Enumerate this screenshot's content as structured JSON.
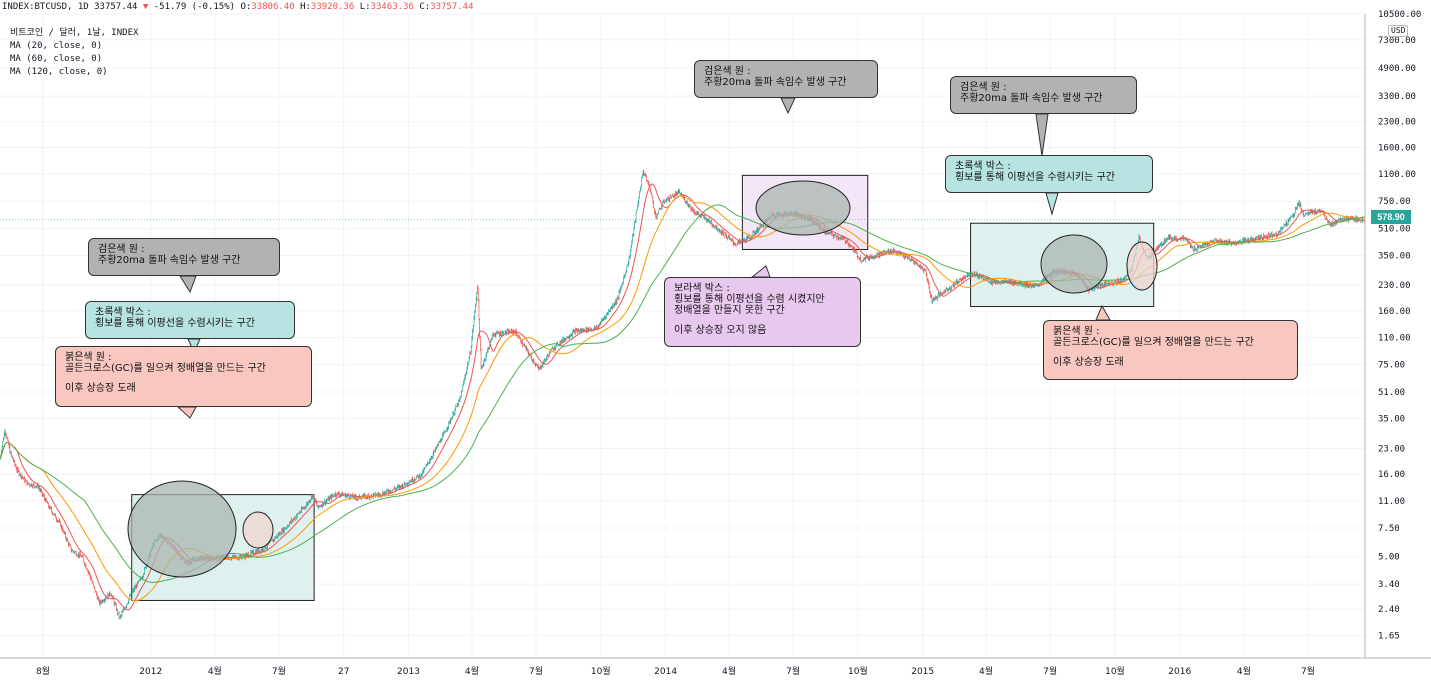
{
  "header": {
    "symbol": "INDEX:BTCUSD, 1D 33757.44",
    "change_arrow": "▼",
    "change": "-51.79 (-0.15%)",
    "o_label": "O:",
    "o": "33806.40",
    "h_label": "H:",
    "h": "33920.36",
    "l_label": "L:",
    "l": "33463.36",
    "c_label": "C:",
    "c": "33757.44"
  },
  "legend": {
    "title": "비트코인 / 달러, 1날, INDEX",
    "ma20": "MA (20, close, 0)",
    "ma60": "MA (60, close, 0)",
    "ma120": "MA (120, close, 0)"
  },
  "colors": {
    "candle_up": "#26a69a",
    "candle_down": "#ef5350",
    "ma20": "#ef5350",
    "ma60": "#ff9800",
    "ma120": "#4caf50",
    "gray_bubble": "#b2b2b2",
    "teal_bubble": "#b7e3e0",
    "red_bubble": "#f7c7c0",
    "purple_bubble": "#e7c9ef",
    "teal_box": "#dff1ef",
    "purple_box": "#f3e6f6",
    "gray_circle": "#a9b4b0",
    "pink_circle": "#efd4cf"
  },
  "annotations": {
    "gray1": {
      "l1": "검은색 원 :",
      "l2": "주황20ma 돌파 속임수 발생 구간"
    },
    "teal1": {
      "l1": "초록색 박스 :",
      "l2": "횡보를 통해 이평선을 수렴시키는 구간"
    },
    "red1": {
      "l1": "붉은색 원 :",
      "l2": "골든크로스(GC)를 일으켜 정배열을 만드는 구간",
      "l3": "이후 상승장 도래"
    },
    "gray2": {
      "l1": "검은색 원 :",
      "l2": "주황20ma 돌파 속임수 발생 구간"
    },
    "purple": {
      "l1": "보라색 박스 :",
      "l2": "횡보를 통해 이평선을 수렴 시켰지만",
      "l3": "정배열을 만들지 못한 구간",
      "l4": "이후 상승장 오지 않음"
    },
    "gray3": {
      "l1": "검은색 원 :",
      "l2": "주황20ma 돌파 속임수 발생 구간"
    },
    "teal2": {
      "l1": "초록색 박스 :",
      "l2": "횡보를 통해 이평선을 수렴시키는 구간"
    },
    "red2": {
      "l1": "붉은색 원 :",
      "l2": "골든크로스(GC)를 일으켜 정배열을 만드는 구간",
      "l3": "이후 상승장 도래"
    }
  },
  "price_tag": "578.90",
  "currency": "USD",
  "chart_data": {
    "type": "candlestick",
    "y_scale": "log",
    "ylim": [
      1.2,
      10500
    ],
    "y_ticks": [
      "10500.00",
      "7300.00",
      "4900.00",
      "3300.00",
      "2300.00",
      "1600.00",
      "1100.00",
      "750.00",
      "510.00",
      "350.00",
      "230.00",
      "160.00",
      "110.00",
      "75.00",
      "51.00",
      "35.00",
      "23.00",
      "16.00",
      "11.00",
      "7.50",
      "5.00",
      "3.40",
      "2.40",
      "1.65"
    ],
    "x_ticks": [
      "8월",
      "2012",
      "4월",
      "7월",
      "27",
      "2013",
      "4월",
      "7월",
      "10월",
      "2014",
      "4월",
      "7월",
      "10월",
      "2015",
      "4월",
      "7월",
      "10월",
      "2016",
      "4월",
      "7월"
    ],
    "x_tick_dates": [
      "2011-08",
      "2012-01",
      "2012-04",
      "2012-07",
      "2012-10",
      "2013-01",
      "2013-04",
      "2013-07",
      "2013-10",
      "2014-01",
      "2014-04",
      "2014-07",
      "2014-10",
      "2015-01",
      "2015-04",
      "2015-07",
      "2015-10",
      "2016-01",
      "2016-04",
      "2016-07"
    ],
    "x_range": [
      "2011-06-01",
      "2016-09-20"
    ],
    "last_price": 578.9,
    "price_path": [
      [
        "2011-06-01",
        20
      ],
      [
        "2011-06-08",
        30
      ],
      [
        "2011-06-15",
        22
      ],
      [
        "2011-06-25",
        17
      ],
      [
        "2011-07-10",
        14
      ],
      [
        "2011-07-25",
        13.5
      ],
      [
        "2011-08-10",
        10
      ],
      [
        "2011-08-25",
        8
      ],
      [
        "2011-09-10",
        5.5
      ],
      [
        "2011-09-25",
        5
      ],
      [
        "2011-10-05",
        4
      ],
      [
        "2011-10-20",
        2.6
      ],
      [
        "2011-11-05",
        3
      ],
      [
        "2011-11-18",
        2.1
      ],
      [
        "2011-12-05",
        3
      ],
      [
        "2011-12-20",
        3.8
      ],
      [
        "2012-01-05",
        6
      ],
      [
        "2012-01-15",
        6.8
      ],
      [
        "2012-02-01",
        5.8
      ],
      [
        "2012-02-20",
        4.6
      ],
      [
        "2012-03-10",
        4.9
      ],
      [
        "2012-04-10",
        4.9
      ],
      [
        "2012-05-10",
        5.0
      ],
      [
        "2012-06-10",
        5.6
      ],
      [
        "2012-07-10",
        7.5
      ],
      [
        "2012-08-10",
        10.5
      ],
      [
        "2012-08-18",
        12
      ],
      [
        "2012-08-25",
        10
      ],
      [
        "2012-09-20",
        12.2
      ],
      [
        "2012-10-20",
        11.5
      ],
      [
        "2012-11-20",
        12
      ],
      [
        "2012-12-20",
        13.4
      ],
      [
        "2013-01-20",
        16
      ],
      [
        "2013-02-20",
        28
      ],
      [
        "2013-03-15",
        46
      ],
      [
        "2013-03-30",
        90
      ],
      [
        "2013-04-09",
        230
      ],
      [
        "2013-04-14",
        70
      ],
      [
        "2013-05-01",
        115
      ],
      [
        "2013-06-01",
        120
      ],
      [
        "2013-07-05",
        70
      ],
      [
        "2013-07-25",
        95
      ],
      [
        "2013-08-25",
        120
      ],
      [
        "2013-09-25",
        125
      ],
      [
        "2013-10-25",
        190
      ],
      [
        "2013-11-10",
        330
      ],
      [
        "2013-11-22",
        700
      ],
      [
        "2013-11-30",
        1150
      ],
      [
        "2013-12-10",
        900
      ],
      [
        "2013-12-18",
        600
      ],
      [
        "2013-12-30",
        750
      ],
      [
        "2014-01-20",
        850
      ],
      [
        "2014-02-10",
        650
      ],
      [
        "2014-03-01",
        580
      ],
      [
        "2014-04-10",
        410
      ],
      [
        "2014-05-01",
        450
      ],
      [
        "2014-06-01",
        620
      ],
      [
        "2014-07-01",
        630
      ],
      [
        "2014-07-25",
        590
      ],
      [
        "2014-08-15",
        490
      ],
      [
        "2014-09-15",
        430
      ],
      [
        "2014-10-05",
        330
      ],
      [
        "2014-10-25",
        350
      ],
      [
        "2014-11-20",
        375
      ],
      [
        "2014-12-20",
        320
      ],
      [
        "2015-01-05",
        280
      ],
      [
        "2015-01-14",
        185
      ],
      [
        "2015-02-10",
        225
      ],
      [
        "2015-03-10",
        275
      ],
      [
        "2015-04-10",
        240
      ],
      [
        "2015-05-10",
        240
      ],
      [
        "2015-06-10",
        225
      ],
      [
        "2015-07-10",
        285
      ],
      [
        "2015-08-10",
        265
      ],
      [
        "2015-08-25",
        215
      ],
      [
        "2015-09-15",
        232
      ],
      [
        "2015-10-10",
        245
      ],
      [
        "2015-10-25",
        290
      ],
      [
        "2015-11-04",
        450
      ],
      [
        "2015-11-15",
        330
      ],
      [
        "2015-12-15",
        450
      ],
      [
        "2016-01-10",
        440
      ],
      [
        "2016-01-20",
        380
      ],
      [
        "2016-02-20",
        430
      ],
      [
        "2016-03-20",
        415
      ],
      [
        "2016-04-20",
        445
      ],
      [
        "2016-05-20",
        480
      ],
      [
        "2016-06-10",
        620
      ],
      [
        "2016-06-18",
        740
      ],
      [
        "2016-06-25",
        620
      ],
      [
        "2016-07-20",
        665
      ],
      [
        "2016-08-02",
        540
      ],
      [
        "2016-08-20",
        585
      ],
      [
        "2016-09-20",
        578.9
      ]
    ]
  }
}
